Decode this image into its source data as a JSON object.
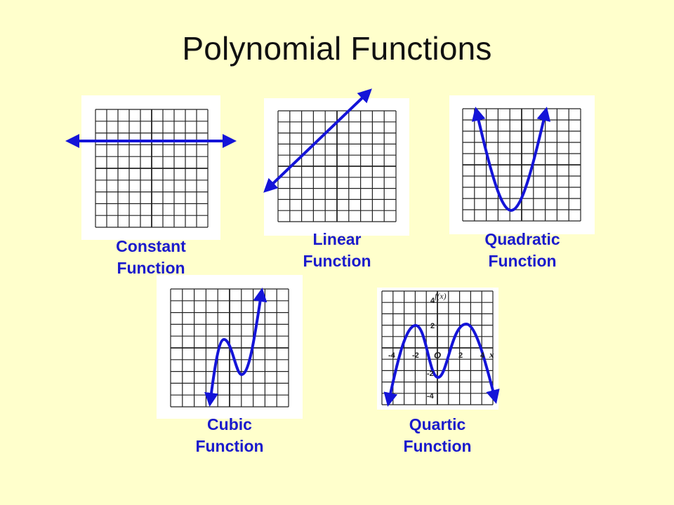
{
  "title": "Polynomial Functions",
  "colors": {
    "background": "#ffffcc",
    "curve": "#1414d8",
    "caption": "#1a1acc",
    "grid": "#222222"
  },
  "graphs": [
    {
      "id": "constant",
      "caption": [
        "Constant",
        "Function"
      ]
    },
    {
      "id": "linear",
      "caption": [
        "Linear",
        "Function"
      ]
    },
    {
      "id": "quadratic",
      "caption": [
        "Quadratic",
        "Function"
      ]
    },
    {
      "id": "cubic",
      "caption": [
        "Cubic",
        "Function"
      ]
    },
    {
      "id": "quartic",
      "caption": [
        "Quartic",
        "Function"
      ],
      "y_axis_label": "f(x)",
      "origin_label": "O",
      "x_axis_label": "x",
      "x_ticks": [
        "-4",
        "-2",
        "2",
        "4"
      ],
      "y_ticks": [
        "4",
        "2",
        "-2",
        "-4"
      ]
    }
  ]
}
